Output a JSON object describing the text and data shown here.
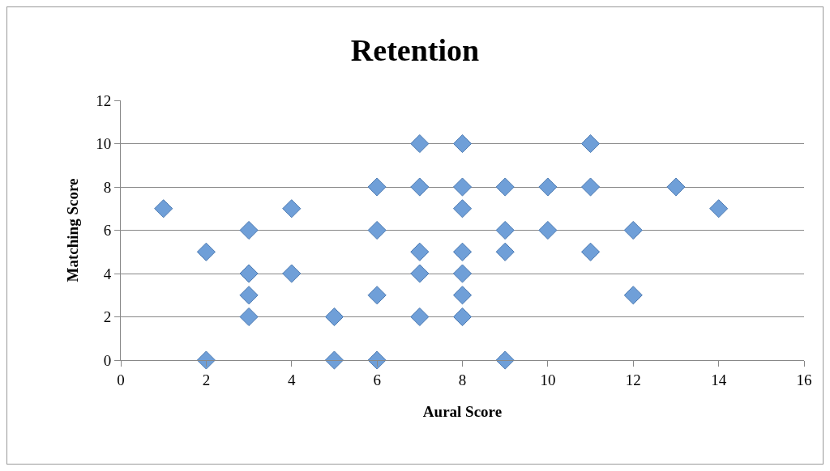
{
  "chart_data": {
    "type": "scatter",
    "title": "Retention",
    "xlabel": "Aural Score",
    "ylabel": "Matching Score",
    "x": [
      1,
      2,
      2,
      3,
      3,
      3,
      3,
      4,
      4,
      5,
      5,
      6,
      6,
      6,
      6,
      7,
      7,
      7,
      7,
      7,
      8,
      8,
      8,
      8,
      8,
      8,
      8,
      9,
      9,
      9,
      9,
      10,
      10,
      11,
      11,
      11,
      12,
      12,
      13,
      14
    ],
    "values": [
      7,
      5,
      0,
      6,
      4,
      3,
      2,
      7,
      4,
      2,
      0,
      8,
      6,
      3,
      0,
      10,
      8,
      5,
      4,
      2,
      10,
      8,
      7,
      5,
      4,
      3,
      2,
      8,
      6,
      5,
      0,
      8,
      6,
      10,
      8,
      5,
      6,
      3,
      8,
      7
    ],
    "color": "#6f9fd8",
    "marker": "diamond",
    "xlim": [
      0,
      16
    ],
    "xticks": [
      0,
      2,
      4,
      6,
      8,
      10,
      12,
      14,
      16
    ],
    "ylim": [
      0,
      12
    ],
    "yticks": [
      0,
      2,
      4,
      6,
      8,
      10,
      12
    ],
    "grid": "y"
  }
}
